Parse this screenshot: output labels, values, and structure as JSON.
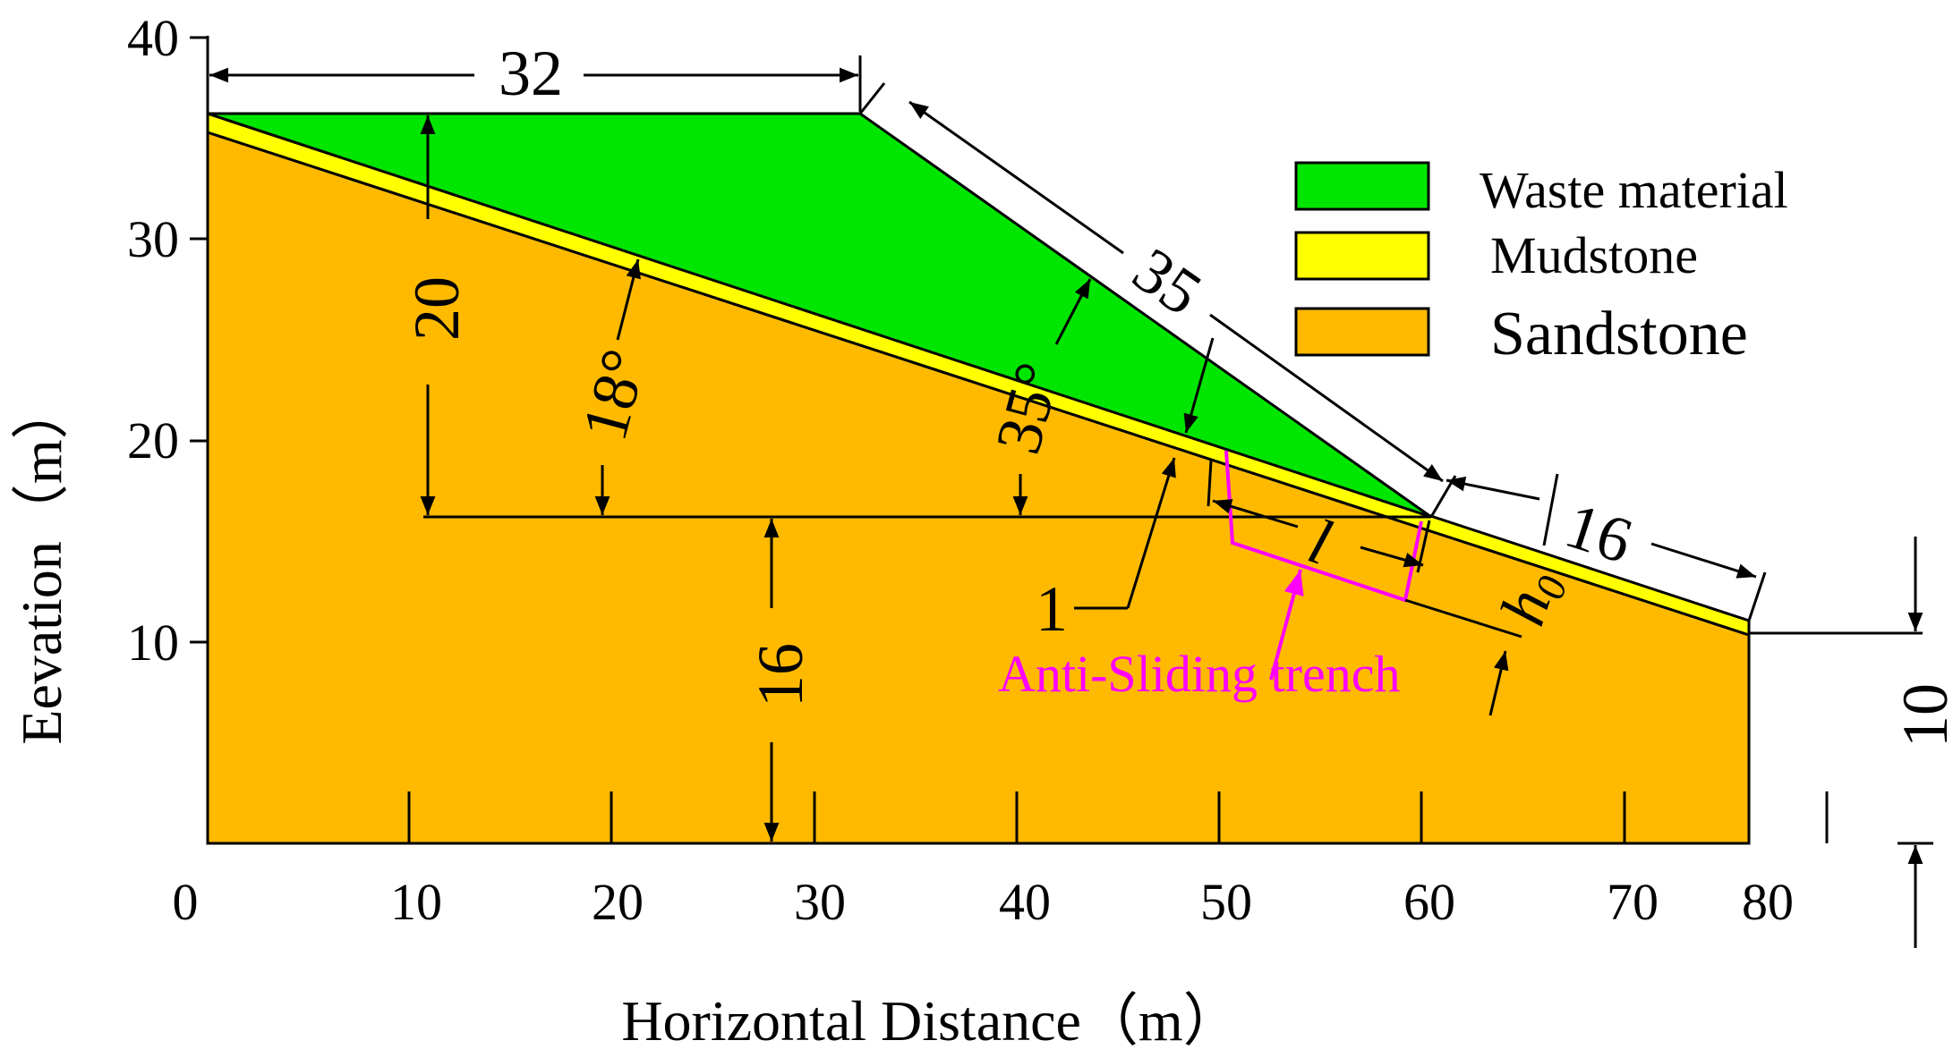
{
  "axes": {
    "x_label": "Horizontal Distance（m）",
    "y_label": "Eevation（m）",
    "x_ticks": [
      "0",
      "10",
      "20",
      "30",
      "40",
      "50",
      "60",
      "70",
      "80"
    ],
    "y_ticks": [
      "10",
      "20",
      "30",
      "40"
    ]
  },
  "legend": [
    {
      "label": "Waste material",
      "color": "#00e600"
    },
    {
      "label": "Mudstone",
      "color": "#ffff00"
    },
    {
      "label": "Sandstone",
      "color": "#ffba00"
    }
  ],
  "dimensions": {
    "top_width": "32",
    "slope_length": "35",
    "toe_length": "16",
    "waste_height": "20",
    "base_height": "16",
    "right_height": "10",
    "bedding_angle": "18°",
    "slope_angle": "35°",
    "trench_length": "l",
    "trench_depth": "h",
    "trench_depth_sub": "0",
    "label_1": "1"
  },
  "annotation": {
    "trench_label": "Anti-Sliding trench",
    "trench_color": "#ff00ff"
  },
  "colors": {
    "waste": "#00e600",
    "mudstone": "#ffff00",
    "sandstone": "#ffba00"
  }
}
